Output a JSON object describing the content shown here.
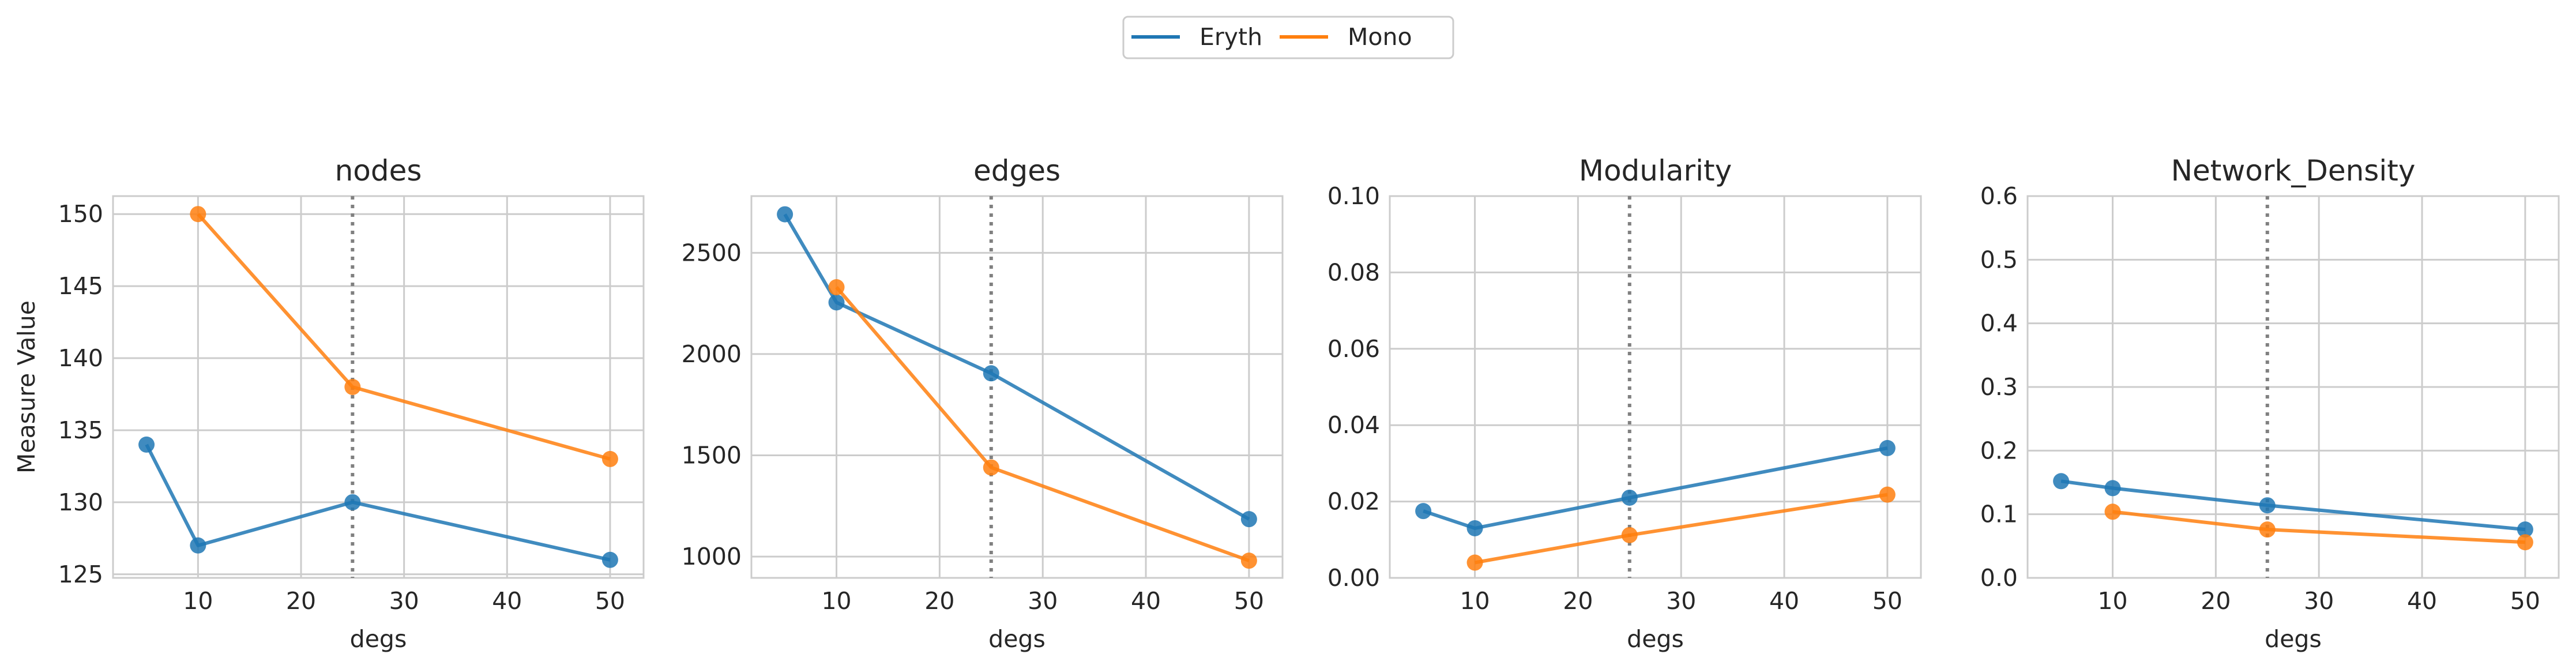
{
  "chart_data": {
    "type": "line",
    "legend": {
      "placement": "top-center",
      "entries": [
        {
          "label": "Eryth",
          "color": "#1f77b4"
        },
        {
          "label": "Mono",
          "color": "#ff7f0e"
        }
      ]
    },
    "shared_xlabel": "degs",
    "shared_ylabel": "Measure Value",
    "reference_line_x": 25,
    "grid": true,
    "panels": [
      {
        "title": "nodes",
        "xlabel": "degs",
        "ylabel": "Measure Value",
        "xlim": [
          1.75,
          53.25
        ],
        "ylim": [
          124.75,
          151.25
        ],
        "xticks": [
          10,
          20,
          30,
          40,
          50
        ],
        "yticks": [
          125,
          130,
          135,
          140,
          145,
          150
        ],
        "ytick_labels": [
          "125",
          "130",
          "135",
          "140",
          "145",
          "150"
        ],
        "series": [
          {
            "name": "Eryth",
            "x": [
              5,
              10,
              25,
              50
            ],
            "y": [
              134,
              127,
              130,
              126
            ]
          },
          {
            "name": "Mono",
            "x": [
              10,
              25,
              50
            ],
            "y": [
              150,
              138,
              133
            ]
          }
        ]
      },
      {
        "title": "edges",
        "xlabel": "degs",
        "ylabel": "",
        "xlim": [
          1.75,
          53.25
        ],
        "ylim": [
          895,
          2780
        ],
        "xticks": [
          10,
          20,
          30,
          40,
          50
        ],
        "yticks": [
          1000,
          1500,
          2000,
          2500
        ],
        "ytick_labels": [
          "1000",
          "1500",
          "2000",
          "2500"
        ],
        "series": [
          {
            "name": "Eryth",
            "x": [
              5,
              10,
              25,
              50
            ],
            "y": [
              2690,
              2255,
              1905,
              1185
            ]
          },
          {
            "name": "Mono",
            "x": [
              10,
              25,
              50
            ],
            "y": [
              2330,
              1440,
              980
            ]
          }
        ]
      },
      {
        "title": "Modularity",
        "xlabel": "degs",
        "ylabel": "",
        "xlim": [
          1.75,
          53.25
        ],
        "ylim": [
          0,
          0.1
        ],
        "xticks": [
          10,
          20,
          30,
          40,
          50
        ],
        "yticks": [
          0,
          0.02,
          0.04,
          0.06,
          0.08,
          0.1
        ],
        "ytick_labels": [
          "0.00",
          "0.02",
          "0.04",
          "0.06",
          "0.08",
          "0.10"
        ],
        "series": [
          {
            "name": "Eryth",
            "x": [
              5,
              10,
              25,
              50
            ],
            "y": [
              0.0175,
              0.013,
              0.021,
              0.034
            ]
          },
          {
            "name": "Mono",
            "x": [
              10,
              25,
              50
            ],
            "y": [
              0.004,
              0.0112,
              0.0218
            ]
          }
        ]
      },
      {
        "title": "Network_Density",
        "xlabel": "degs",
        "ylabel": "",
        "xlim": [
          1.75,
          53.25
        ],
        "ylim": [
          0,
          0.6
        ],
        "xticks": [
          10,
          20,
          30,
          40,
          50
        ],
        "yticks": [
          0,
          0.1,
          0.2,
          0.3,
          0.4,
          0.5,
          0.6
        ],
        "ytick_labels": [
          "0.0",
          "0.1",
          "0.2",
          "0.3",
          "0.4",
          "0.5",
          "0.6"
        ],
        "series": [
          {
            "name": "Eryth",
            "x": [
              5,
              10,
              25,
              50
            ],
            "y": [
              0.152,
              0.141,
              0.114,
              0.076
            ]
          },
          {
            "name": "Mono",
            "x": [
              10,
              25,
              50
            ],
            "y": [
              0.104,
              0.076,
              0.056
            ]
          }
        ]
      }
    ]
  }
}
